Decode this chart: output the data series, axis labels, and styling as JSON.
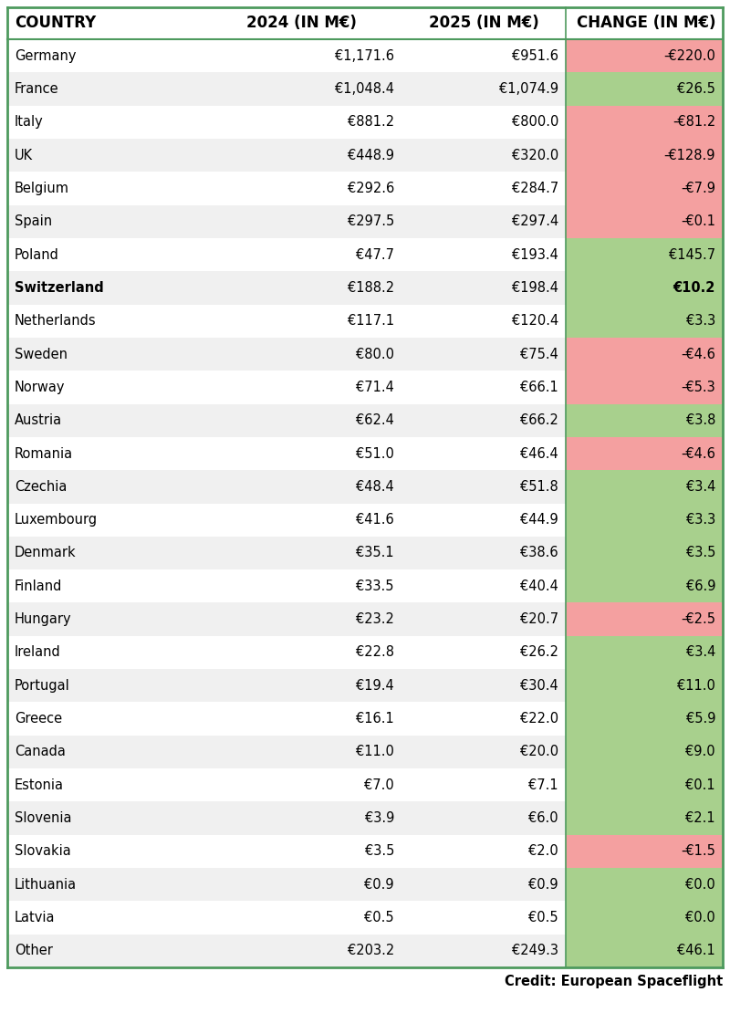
{
  "columns": [
    "COUNTRY",
    "2024 (IN M€)",
    "2025 (IN M€)",
    "CHANGE (IN M€)"
  ],
  "rows": [
    {
      "country": "Germany",
      "y2024": "€1,171.6",
      "y2025": "€951.6",
      "change": "-€220.0",
      "change_val": -220.0
    },
    {
      "country": "France",
      "y2024": "€1,048.4",
      "y2025": "€1,074.9",
      "change": "€26.5",
      "change_val": 26.5
    },
    {
      "country": "Italy",
      "y2024": "€881.2",
      "y2025": "€800.0",
      "change": "-€81.2",
      "change_val": -81.2
    },
    {
      "country": "UK",
      "y2024": "€448.9",
      "y2025": "€320.0",
      "change": "-€128.9",
      "change_val": -128.9
    },
    {
      "country": "Belgium",
      "y2024": "€292.6",
      "y2025": "€284.7",
      "change": "-€7.9",
      "change_val": -7.9
    },
    {
      "country": "Spain",
      "y2024": "€297.5",
      "y2025": "€297.4",
      "change": "-€0.1",
      "change_val": -0.1
    },
    {
      "country": "Poland",
      "y2024": "€47.7",
      "y2025": "€193.4",
      "change": "€145.7",
      "change_val": 145.7
    },
    {
      "country": "Switzerland",
      "y2024": "€188.2",
      "y2025": "€198.4",
      "change": "€10.2",
      "change_val": 10.2,
      "bold": true
    },
    {
      "country": "Netherlands",
      "y2024": "€117.1",
      "y2025": "€120.4",
      "change": "€3.3",
      "change_val": 3.3
    },
    {
      "country": "Sweden",
      "y2024": "€80.0",
      "y2025": "€75.4",
      "change": "-€4.6",
      "change_val": -4.6
    },
    {
      "country": "Norway",
      "y2024": "€71.4",
      "y2025": "€66.1",
      "change": "-€5.3",
      "change_val": -5.3
    },
    {
      "country": "Austria",
      "y2024": "€62.4",
      "y2025": "€66.2",
      "change": "€3.8",
      "change_val": 3.8
    },
    {
      "country": "Romania",
      "y2024": "€51.0",
      "y2025": "€46.4",
      "change": "-€4.6",
      "change_val": -4.6
    },
    {
      "country": "Czechia",
      "y2024": "€48.4",
      "y2025": "€51.8",
      "change": "€3.4",
      "change_val": 3.4
    },
    {
      "country": "Luxembourg",
      "y2024": "€41.6",
      "y2025": "€44.9",
      "change": "€3.3",
      "change_val": 3.3
    },
    {
      "country": "Denmark",
      "y2024": "€35.1",
      "y2025": "€38.6",
      "change": "€3.5",
      "change_val": 3.5
    },
    {
      "country": "Finland",
      "y2024": "€33.5",
      "y2025": "€40.4",
      "change": "€6.9",
      "change_val": 6.9
    },
    {
      "country": "Hungary",
      "y2024": "€23.2",
      "y2025": "€20.7",
      "change": "-€2.5",
      "change_val": -2.5
    },
    {
      "country": "Ireland",
      "y2024": "€22.8",
      "y2025": "€26.2",
      "change": "€3.4",
      "change_val": 3.4
    },
    {
      "country": "Portugal",
      "y2024": "€19.4",
      "y2025": "€30.4",
      "change": "€11.0",
      "change_val": 11.0
    },
    {
      "country": "Greece",
      "y2024": "€16.1",
      "y2025": "€22.0",
      "change": "€5.9",
      "change_val": 5.9
    },
    {
      "country": "Canada",
      "y2024": "€11.0",
      "y2025": "€20.0",
      "change": "€9.0",
      "change_val": 9.0
    },
    {
      "country": "Estonia",
      "y2024": "€7.0",
      "y2025": "€7.1",
      "change": "€0.1",
      "change_val": 0.1
    },
    {
      "country": "Slovenia",
      "y2024": "€3.9",
      "y2025": "€6.0",
      "change": "€2.1",
      "change_val": 2.1
    },
    {
      "country": "Slovakia",
      "y2024": "€3.5",
      "y2025": "€2.0",
      "change": "-€1.5",
      "change_val": -1.5
    },
    {
      "country": "Lithuania",
      "y2024": "€0.9",
      "y2025": "€0.9",
      "change": "€0.0",
      "change_val": 0.0
    },
    {
      "country": "Latvia",
      "y2024": "€0.5",
      "y2025": "€0.5",
      "change": "€0.0",
      "change_val": 0.0
    },
    {
      "country": "Other",
      "y2024": "€203.2",
      "y2025": "€249.3",
      "change": "€46.1",
      "change_val": 46.1
    }
  ],
  "header_bg": "#ffffff",
  "row_bg_even": "#f0f0f0",
  "row_bg_odd": "#ffffff",
  "green_bg": "#a8d08d",
  "red_bg": "#f4a0a0",
  "border_color": "#4e9a5e",
  "credit_text": "Credit: European Spaceflight",
  "figsize": [
    8.0,
    11.1
  ],
  "dpi": 100,
  "header_fontsize": 12.0,
  "row_fontsize": 10.5,
  "credit_fontsize": 10.5
}
